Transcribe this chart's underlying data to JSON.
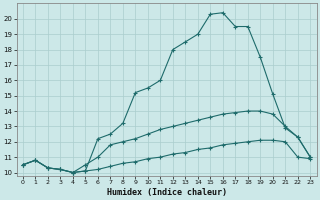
{
  "xlabel": "Humidex (Indice chaleur)",
  "background_color": "#cce8e8",
  "grid_color": "#aacece",
  "line_color": "#1e6b6b",
  "xlim": [
    -0.5,
    23.5
  ],
  "ylim": [
    9.8,
    21.0
  ],
  "xticks": [
    0,
    1,
    2,
    3,
    4,
    5,
    6,
    7,
    8,
    9,
    10,
    11,
    12,
    13,
    14,
    15,
    16,
    17,
    18,
    19,
    20,
    21,
    22,
    23
  ],
  "yticks": [
    10,
    11,
    12,
    13,
    14,
    15,
    16,
    17,
    18,
    19,
    20
  ],
  "series1_x": [
    0,
    1,
    2,
    3,
    4,
    5,
    6,
    7,
    8,
    9,
    10,
    11,
    12,
    13,
    14,
    15,
    16,
    17,
    18,
    19,
    20,
    21,
    22,
    23
  ],
  "series1_y": [
    10.5,
    10.8,
    10.3,
    10.2,
    10.0,
    10.1,
    12.2,
    12.5,
    13.2,
    15.2,
    15.5,
    16.0,
    18.0,
    18.5,
    19.0,
    20.3,
    20.4,
    19.5,
    19.5,
    17.5,
    15.1,
    12.9,
    12.3,
    11.0
  ],
  "series2_x": [
    0,
    1,
    2,
    3,
    4,
    5,
    6,
    7,
    8,
    9,
    10,
    11,
    12,
    13,
    14,
    15,
    16,
    17,
    18,
    19,
    20,
    21,
    22,
    23
  ],
  "series2_y": [
    10.5,
    10.8,
    10.3,
    10.2,
    10.0,
    10.5,
    11.0,
    11.8,
    12.0,
    12.2,
    12.5,
    12.8,
    13.0,
    13.2,
    13.4,
    13.6,
    13.8,
    13.9,
    14.0,
    14.0,
    13.8,
    13.0,
    12.3,
    11.0
  ],
  "series3_x": [
    0,
    1,
    2,
    3,
    4,
    5,
    6,
    7,
    8,
    9,
    10,
    11,
    12,
    13,
    14,
    15,
    16,
    17,
    18,
    19,
    20,
    21,
    22,
    23
  ],
  "series3_y": [
    10.5,
    10.8,
    10.3,
    10.2,
    10.0,
    10.1,
    10.2,
    10.4,
    10.6,
    10.7,
    10.9,
    11.0,
    11.2,
    11.3,
    11.5,
    11.6,
    11.8,
    11.9,
    12.0,
    12.1,
    12.1,
    12.0,
    11.0,
    10.9
  ]
}
